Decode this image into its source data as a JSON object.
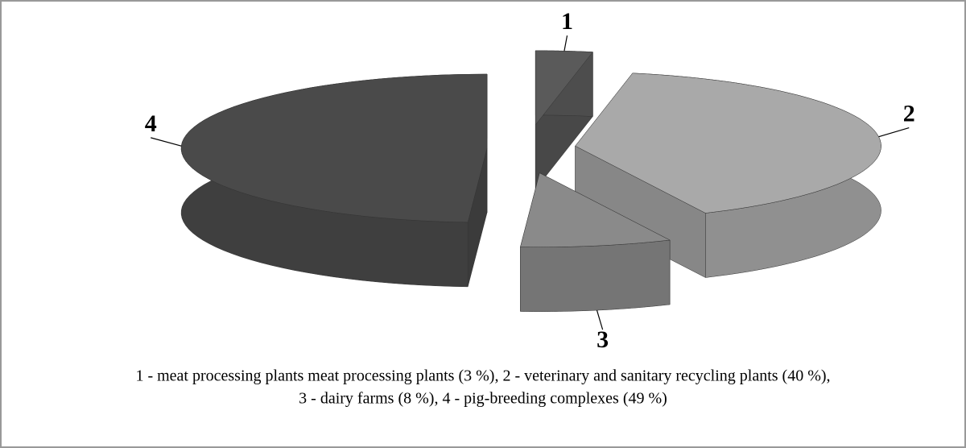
{
  "chart_data": {
    "type": "pie3d",
    "categories": [
      "1",
      "2",
      "3",
      "4"
    ],
    "values": [
      3,
      40,
      8,
      49
    ],
    "colors": [
      "#5a5a5a",
      "#a9a9a9",
      "#8a8a8a",
      "#4a4a4a"
    ],
    "caption": [
      "1 - meat processing plants meat processing plants  (3 %), 2 - veterinary and sanitary recycling plants (40 %),",
      "3 - dairy farms (8 %),  4 - pig-breeding complexes (49 %)"
    ]
  }
}
